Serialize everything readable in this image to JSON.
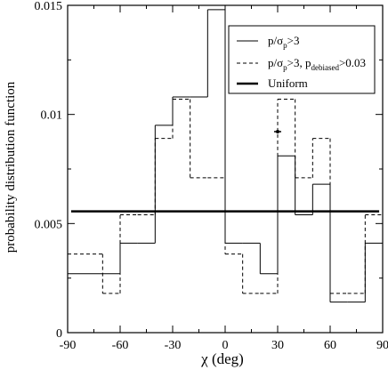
{
  "chart_data": {
    "type": "step",
    "xlabel": "χ (deg)",
    "ylabel": "probability distribution function",
    "xlim": [
      -90,
      90
    ],
    "ylim": [
      0,
      0.015
    ],
    "xticks": [
      -90,
      -60,
      -30,
      0,
      30,
      60,
      90
    ],
    "xtick_labels": [
      "-90",
      "-60",
      "-30",
      "0",
      "30",
      "60",
      "90"
    ],
    "yticks": [
      0,
      0.005,
      0.01,
      0.015
    ],
    "ytick_labels": [
      "0",
      "0.005",
      "0.01",
      "0.015"
    ],
    "bin_edges": [
      -90,
      -70,
      -60,
      -50,
      -40,
      -30,
      -20,
      -10,
      0,
      10,
      20,
      30,
      40,
      50,
      60,
      70,
      80,
      90
    ],
    "series": [
      {
        "name": "p/σp>3",
        "style": "solid",
        "values": [
          0.0027,
          0.0027,
          0.0041,
          0.0041,
          0.0095,
          0.0108,
          0.0108,
          0.0148,
          0.0041,
          0.0041,
          0.0027,
          0.0081,
          0.0054,
          0.0068,
          0.0014,
          0.0014,
          0.0041
        ]
      },
      {
        "name": "p/σp>3, pdebiased>0.03",
        "style": "dashed",
        "values": [
          0.0036,
          0.0018,
          0.0054,
          0.0054,
          0.0089,
          0.0107,
          0.0071,
          0.0071,
          0.0036,
          0.0018,
          0.0018,
          0.0107,
          0.0071,
          0.0089,
          0.0018,
          0.0018,
          0.0054
        ]
      },
      {
        "name": "Uniform",
        "style": "thick",
        "value": 0.00556
      }
    ],
    "legend_placement": "top-right",
    "grid": false
  },
  "legend": {
    "solid_main": "p/σ",
    "solid_sub": "p",
    "solid_tail": ">3",
    "dashed_main": "p/σ",
    "dashed_sub": "p",
    "dashed_mid": ">3, p",
    "dashed_sub2": "debiased",
    "dashed_tail": ">0.03",
    "uniform": "Uniform"
  }
}
